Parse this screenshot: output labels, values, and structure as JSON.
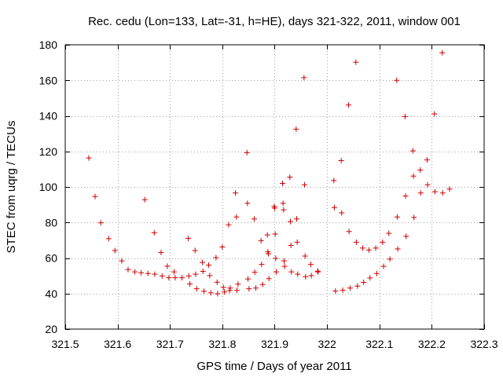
{
  "chart_data": {
    "type": "scatter",
    "title": "Rec. cedu (Lon=133, Lat=-31, h=HE), days 321-322, 2011, window 001",
    "xlabel": "GPS time / Days of year 2011",
    "ylabel": "STEC from uqrg / TECUs",
    "xlim": [
      321.5,
      322.3
    ],
    "ylim": [
      20,
      180
    ],
    "xticks": [
      321.5,
      321.6,
      321.7,
      321.8,
      321.9,
      322,
      322.1,
      322.2,
      322.3
    ],
    "xtick_labels": [
      "321.5",
      "321.6",
      "321.7",
      "321.8",
      "321.9",
      "322",
      "322.1",
      "322.2",
      "322.3"
    ],
    "yticks": [
      20,
      40,
      60,
      80,
      100,
      120,
      140,
      160,
      180
    ],
    "ytick_labels": [
      "20",
      "40",
      "60",
      "80",
      "100",
      "120",
      "140",
      "160",
      "180"
    ],
    "grid": true,
    "marker": "+",
    "marker_color": "#d00000",
    "series": [
      {
        "name": "STEC",
        "points": [
          [
            321.545,
            116.3
          ],
          [
            321.557,
            94.6
          ],
          [
            321.568,
            79.8
          ],
          [
            321.583,
            70.9
          ],
          [
            321.595,
            64.2
          ],
          [
            321.608,
            58.4
          ],
          [
            321.62,
            53.5
          ],
          [
            321.633,
            52.2
          ],
          [
            321.645,
            51.7
          ],
          [
            321.652,
            92.8
          ],
          [
            321.658,
            51.3
          ],
          [
            321.67,
            74.2
          ],
          [
            321.671,
            50.9
          ],
          [
            321.683,
            63.1
          ],
          [
            321.685,
            49.9
          ],
          [
            321.695,
            55.4
          ],
          [
            321.698,
            48.9
          ],
          [
            321.708,
            52.2
          ],
          [
            321.71,
            48.9
          ],
          [
            321.723,
            48.9
          ],
          [
            321.735,
            71.0
          ],
          [
            321.736,
            49.9
          ],
          [
            321.738,
            45.4
          ],
          [
            321.748,
            64.2
          ],
          [
            321.749,
            50.9
          ],
          [
            321.751,
            42.7
          ],
          [
            321.762,
            57.5
          ],
          [
            321.763,
            52.5
          ],
          [
            321.765,
            41.3
          ],
          [
            321.774,
            56.0
          ],
          [
            321.776,
            50.1
          ],
          [
            321.778,
            40.4
          ],
          [
            321.788,
            60.2
          ],
          [
            321.79,
            46.4
          ],
          [
            321.791,
            39.9
          ],
          [
            321.8,
            66.2
          ],
          [
            321.802,
            43.5
          ],
          [
            321.804,
            40.9
          ],
          [
            321.812,
            78.7
          ],
          [
            321.814,
            41.7
          ],
          [
            321.815,
            43.1
          ],
          [
            321.825,
            96.6
          ],
          [
            321.827,
            83.1
          ],
          [
            321.828,
            41.8
          ],
          [
            321.83,
            45.3
          ],
          [
            321.847,
            119.3
          ],
          [
            321.848,
            90.8
          ],
          [
            321.849,
            48.2
          ],
          [
            321.851,
            42.7
          ],
          [
            321.861,
            82.0
          ],
          [
            321.862,
            52.0
          ],
          [
            321.864,
            43.1
          ],
          [
            321.874,
            69.8
          ],
          [
            321.875,
            56.4
          ],
          [
            321.877,
            45.1
          ],
          [
            321.886,
            73.0
          ],
          [
            321.887,
            63.5
          ],
          [
            321.888,
            62.4
          ],
          [
            321.889,
            48.4
          ],
          [
            321.899,
            89.0
          ],
          [
            321.9,
            88.1
          ],
          [
            321.901,
            73.5
          ],
          [
            321.902,
            59.8
          ],
          [
            321.903,
            52.2
          ],
          [
            321.915,
            102.0
          ],
          [
            321.916,
            90.8
          ],
          [
            321.917,
            87.1
          ],
          [
            321.918,
            58.4
          ],
          [
            321.919,
            55.3
          ],
          [
            321.929,
            105.5
          ],
          [
            321.93,
            80.5
          ],
          [
            321.931,
            67.1
          ],
          [
            321.932,
            52.2
          ],
          [
            321.941,
            132.5
          ],
          [
            321.942,
            82.0
          ],
          [
            321.943,
            68.9
          ],
          [
            321.944,
            50.9
          ],
          [
            321.956,
            161.5
          ],
          [
            321.957,
            101.2
          ],
          [
            321.958,
            61.1
          ],
          [
            321.959,
            49.5
          ],
          [
            321.969,
            56.4
          ],
          [
            321.97,
            50.1
          ],
          [
            321.982,
            52.6
          ],
          [
            321.983,
            52.2
          ],
          [
            322.013,
            103.6
          ],
          [
            322.014,
            88.4
          ],
          [
            322.016,
            41.4
          ],
          [
            322.027,
            114.8
          ],
          [
            322.028,
            85.4
          ],
          [
            322.03,
            41.9
          ],
          [
            322.041,
            146.1
          ],
          [
            322.042,
            74.9
          ],
          [
            322.044,
            43.1
          ],
          [
            322.055,
            170.2
          ],
          [
            322.056,
            68.9
          ],
          [
            322.058,
            44.2
          ],
          [
            322.068,
            65.6
          ],
          [
            322.07,
            46.3
          ],
          [
            322.08,
            64.5
          ],
          [
            322.082,
            48.8
          ],
          [
            322.093,
            65.6
          ],
          [
            322.095,
            51.3
          ],
          [
            322.106,
            68.9
          ],
          [
            322.108,
            55.3
          ],
          [
            322.118,
            73.9
          ],
          [
            322.12,
            59.4
          ],
          [
            322.133,
            160.0
          ],
          [
            322.134,
            83.1
          ],
          [
            322.135,
            65.1
          ],
          [
            322.149,
            139.6
          ],
          [
            322.15,
            94.9
          ],
          [
            322.151,
            72.2
          ],
          [
            322.164,
            120.3
          ],
          [
            322.165,
            106.1
          ],
          [
            322.166,
            82.8
          ],
          [
            322.178,
            109.5
          ],
          [
            322.179,
            96.6
          ],
          [
            322.191,
            115.2
          ],
          [
            322.192,
            101.2
          ],
          [
            322.205,
            141.1
          ],
          [
            322.206,
            97.3
          ],
          [
            322.22,
            175.5
          ],
          [
            322.221,
            96.6
          ],
          [
            322.234,
            98.8
          ]
        ]
      }
    ]
  }
}
